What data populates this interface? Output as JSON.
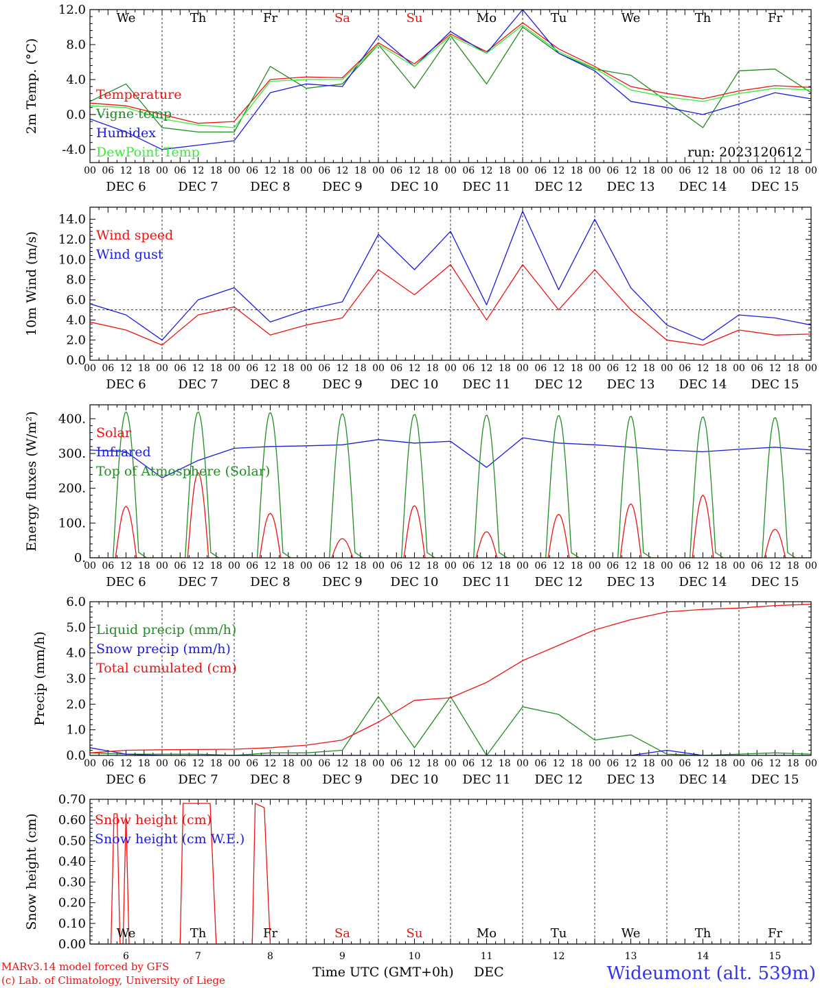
{
  "run_label": "run: 2023120612",
  "footer": {
    "model": "MARv3.14 model forced by GFS",
    "copyright": "(c) Lab. of Climatology, University of Liege",
    "xlabel_time": "Time UTC (GMT+0h)",
    "xlabel_month": "DEC",
    "station": "Wideumont (alt. 539m)"
  },
  "colors": {
    "red": "#ee1111",
    "green": "#228b22",
    "blue": "#1a1ae0",
    "lime": "#33ee33",
    "weekend": "#ee1111"
  },
  "days": {
    "weekday_labels": [
      "We",
      "Th",
      "Fr",
      "Sa",
      "Su",
      "Mo",
      "Tu",
      "We",
      "Th",
      "Fr"
    ],
    "weekend_flags": [
      false,
      false,
      false,
      true,
      true,
      false,
      false,
      false,
      false,
      false
    ],
    "date_labels": [
      "DEC 6",
      "DEC 7",
      "DEC 8",
      "DEC 9",
      "DEC 10",
      "DEC 11",
      "DEC 12",
      "DEC 13",
      "DEC 14",
      "DEC 15"
    ],
    "day_numbers": [
      "6",
      "7",
      "8",
      "9",
      "10",
      "11",
      "12",
      "13",
      "14",
      "15"
    ],
    "hour_labels": [
      "00",
      "06",
      "12",
      "18"
    ],
    "end_hour_label": "00"
  },
  "chart_data": [
    {
      "type": "line",
      "ylabel": "2m Temp. (°C)",
      "ylim": [
        -5.5,
        12.0
      ],
      "yticks": [
        "-4.0",
        "0.0",
        "4.0",
        "8.0",
        "12.0"
      ],
      "ytick_values": [
        -4,
        0,
        4,
        8,
        12
      ],
      "ref_line": 0,
      "x_hours": [
        0,
        12,
        24,
        36,
        48,
        60,
        72,
        84,
        96,
        108,
        120,
        132,
        144,
        156,
        168,
        180,
        192,
        204,
        216,
        228,
        240
      ],
      "series": [
        {
          "name": "Temperature",
          "color": "red",
          "values": [
            1.3,
            1.0,
            0.0,
            -1.0,
            -0.8,
            4.0,
            4.3,
            4.2,
            8.2,
            5.8,
            9.2,
            7.2,
            10.5,
            7.5,
            5.5,
            3.2,
            2.4,
            1.8,
            2.7,
            3.3,
            3.1
          ]
        },
        {
          "name": "Vigne temp",
          "color": "green",
          "values": [
            1.5,
            3.5,
            -1.5,
            -2.0,
            -2.0,
            5.5,
            3.0,
            3.5,
            8.0,
            3.0,
            9.0,
            3.5,
            10.0,
            7.0,
            5.2,
            4.5,
            1.5,
            -1.5,
            5.0,
            5.2,
            2.5
          ]
        },
        {
          "name": "Humidex",
          "color": "blue",
          "values": [
            -0.5,
            -2.0,
            -4.0,
            -3.5,
            -3.0,
            2.5,
            3.5,
            3.2,
            9.0,
            5.5,
            9.5,
            7.0,
            12.0,
            7.0,
            5.0,
            1.5,
            0.8,
            0.0,
            1.2,
            2.5,
            1.8
          ]
        },
        {
          "name": "DewPoint Temp",
          "color": "lime",
          "values": [
            1.0,
            0.8,
            -0.5,
            -1.2,
            -1.5,
            3.8,
            4.0,
            4.0,
            8.0,
            5.5,
            9.0,
            7.0,
            10.2,
            7.2,
            5.3,
            2.8,
            2.0,
            1.5,
            2.4,
            3.0,
            2.8
          ]
        }
      ]
    },
    {
      "type": "line",
      "ylabel": "10m Wind (m/s)",
      "ylim": [
        0,
        15.2
      ],
      "yticks": [
        "0.0",
        "2.0",
        "4.0",
        "6.0",
        "8.0",
        "10.0",
        "12.0",
        "14.0"
      ],
      "ytick_values": [
        0,
        2,
        4,
        6,
        8,
        10,
        12,
        14
      ],
      "ref_line": 5,
      "x_hours": [
        0,
        12,
        24,
        36,
        48,
        60,
        72,
        84,
        96,
        108,
        120,
        132,
        144,
        156,
        168,
        180,
        192,
        204,
        216,
        228,
        240
      ],
      "series": [
        {
          "name": "Wind speed",
          "color": "red",
          "values": [
            3.8,
            3.0,
            1.5,
            4.5,
            5.3,
            2.5,
            3.5,
            4.2,
            9.0,
            6.5,
            9.5,
            4.0,
            9.5,
            5.0,
            9.0,
            5.0,
            2.0,
            1.5,
            3.0,
            2.5,
            2.6
          ]
        },
        {
          "name": "Wind gust",
          "color": "blue",
          "values": [
            5.6,
            4.5,
            2.0,
            6.0,
            7.2,
            3.8,
            5.0,
            5.8,
            12.5,
            9.0,
            12.8,
            5.5,
            14.8,
            7.0,
            14.0,
            7.2,
            3.5,
            2.0,
            4.5,
            4.2,
            3.5
          ]
        }
      ]
    },
    {
      "type": "line",
      "ylabel": "Energy fluxes (W/m²)",
      "ylim": [
        0,
        440
      ],
      "yticks": [
        "0.",
        "100.",
        "200.",
        "300.",
        "400."
      ],
      "ytick_values": [
        0,
        100,
        200,
        300,
        400
      ],
      "diurnal_peak_hour": 12,
      "x_hours_infrared": [
        0,
        12,
        24,
        36,
        48,
        60,
        72,
        84,
        96,
        108,
        120,
        132,
        144,
        156,
        168,
        180,
        192,
        204,
        216,
        228,
        240
      ],
      "series": [
        {
          "name": "Solar",
          "color": "red",
          "daily_peak_values": [
            148,
            245,
            128,
            55,
            150,
            75,
            125,
            155,
            180,
            82
          ]
        },
        {
          "name": "Infrared",
          "color": "blue",
          "values": [
            310,
            305,
            230,
            280,
            315,
            320,
            322,
            325,
            340,
            330,
            335,
            260,
            345,
            330,
            325,
            318,
            310,
            305,
            312,
            318,
            310
          ]
        },
        {
          "name": "Top of Atmosphere (Solar)",
          "color": "green",
          "daily_peak_values": [
            420,
            420,
            418,
            415,
            413,
            411,
            410,
            408,
            406,
            404
          ]
        }
      ]
    },
    {
      "type": "line",
      "ylabel": "Precip (mm/h)",
      "ylim": [
        0,
        6.0
      ],
      "yticks": [
        "0.0",
        "1.0",
        "2.0",
        "3.0",
        "4.0",
        "5.0",
        "6.0"
      ],
      "ytick_values": [
        0,
        1,
        2,
        3,
        4,
        5,
        6
      ],
      "x_hours": [
        0,
        12,
        24,
        36,
        48,
        60,
        72,
        84,
        96,
        108,
        120,
        132,
        144,
        156,
        168,
        180,
        192,
        204,
        216,
        228,
        240
      ],
      "series": [
        {
          "name": "Liquid precip (mm/h)",
          "color": "green",
          "values": [
            0.1,
            0.05,
            0.05,
            0.05,
            0.0,
            0.1,
            0.1,
            0.2,
            2.3,
            0.3,
            2.3,
            0.0,
            1.9,
            1.6,
            0.6,
            0.8,
            0.05,
            0.0,
            0.05,
            0.1,
            0.05
          ]
        },
        {
          "name": "Snow precip (mm/h)",
          "color": "blue",
          "values": [
            0.3,
            0.05,
            0.0,
            0.0,
            0.0,
            0.0,
            0.0,
            0.0,
            0.0,
            0.0,
            0.0,
            0.0,
            0.0,
            0.0,
            0.0,
            0.0,
            0.2,
            0.0,
            0.0,
            0.0,
            0.0
          ]
        },
        {
          "name": "Total cumulated (cm)",
          "color": "red",
          "values": [
            0.1,
            0.2,
            0.22,
            0.23,
            0.24,
            0.3,
            0.4,
            0.6,
            1.3,
            2.15,
            2.25,
            2.85,
            3.7,
            4.3,
            4.9,
            5.3,
            5.6,
            5.7,
            5.75,
            5.85,
            5.9
          ]
        }
      ]
    },
    {
      "type": "line",
      "ylabel": "Snow height (cm)",
      "ylim": [
        0,
        0.7
      ],
      "yticks": [
        "0.00",
        "0.10",
        "0.20",
        "0.30",
        "0.40",
        "0.50",
        "0.60",
        "0.70"
      ],
      "ytick_values": [
        0,
        0.1,
        0.2,
        0.3,
        0.4,
        0.5,
        0.6,
        0.7
      ],
      "series": [
        {
          "name": "Snow height (cm)",
          "color": "red",
          "points": [
            [
              0,
              0
            ],
            [
              7,
              0
            ],
            [
              8,
              0.63
            ],
            [
              9,
              0.63
            ],
            [
              10,
              0
            ],
            [
              11,
              0
            ],
            [
              12,
              0.63
            ],
            [
              13,
              0
            ],
            [
              30,
              0
            ],
            [
              31,
              0.68
            ],
            [
              40,
              0.68
            ],
            [
              42,
              0
            ],
            [
              54,
              0
            ],
            [
              55,
              0.68
            ],
            [
              58,
              0.66
            ],
            [
              60,
              0
            ],
            [
              240,
              0
            ]
          ]
        },
        {
          "name": "Snow height (cm W.E.)",
          "color": "blue",
          "points": [
            [
              0,
              0
            ],
            [
              240,
              0
            ]
          ]
        }
      ]
    }
  ]
}
